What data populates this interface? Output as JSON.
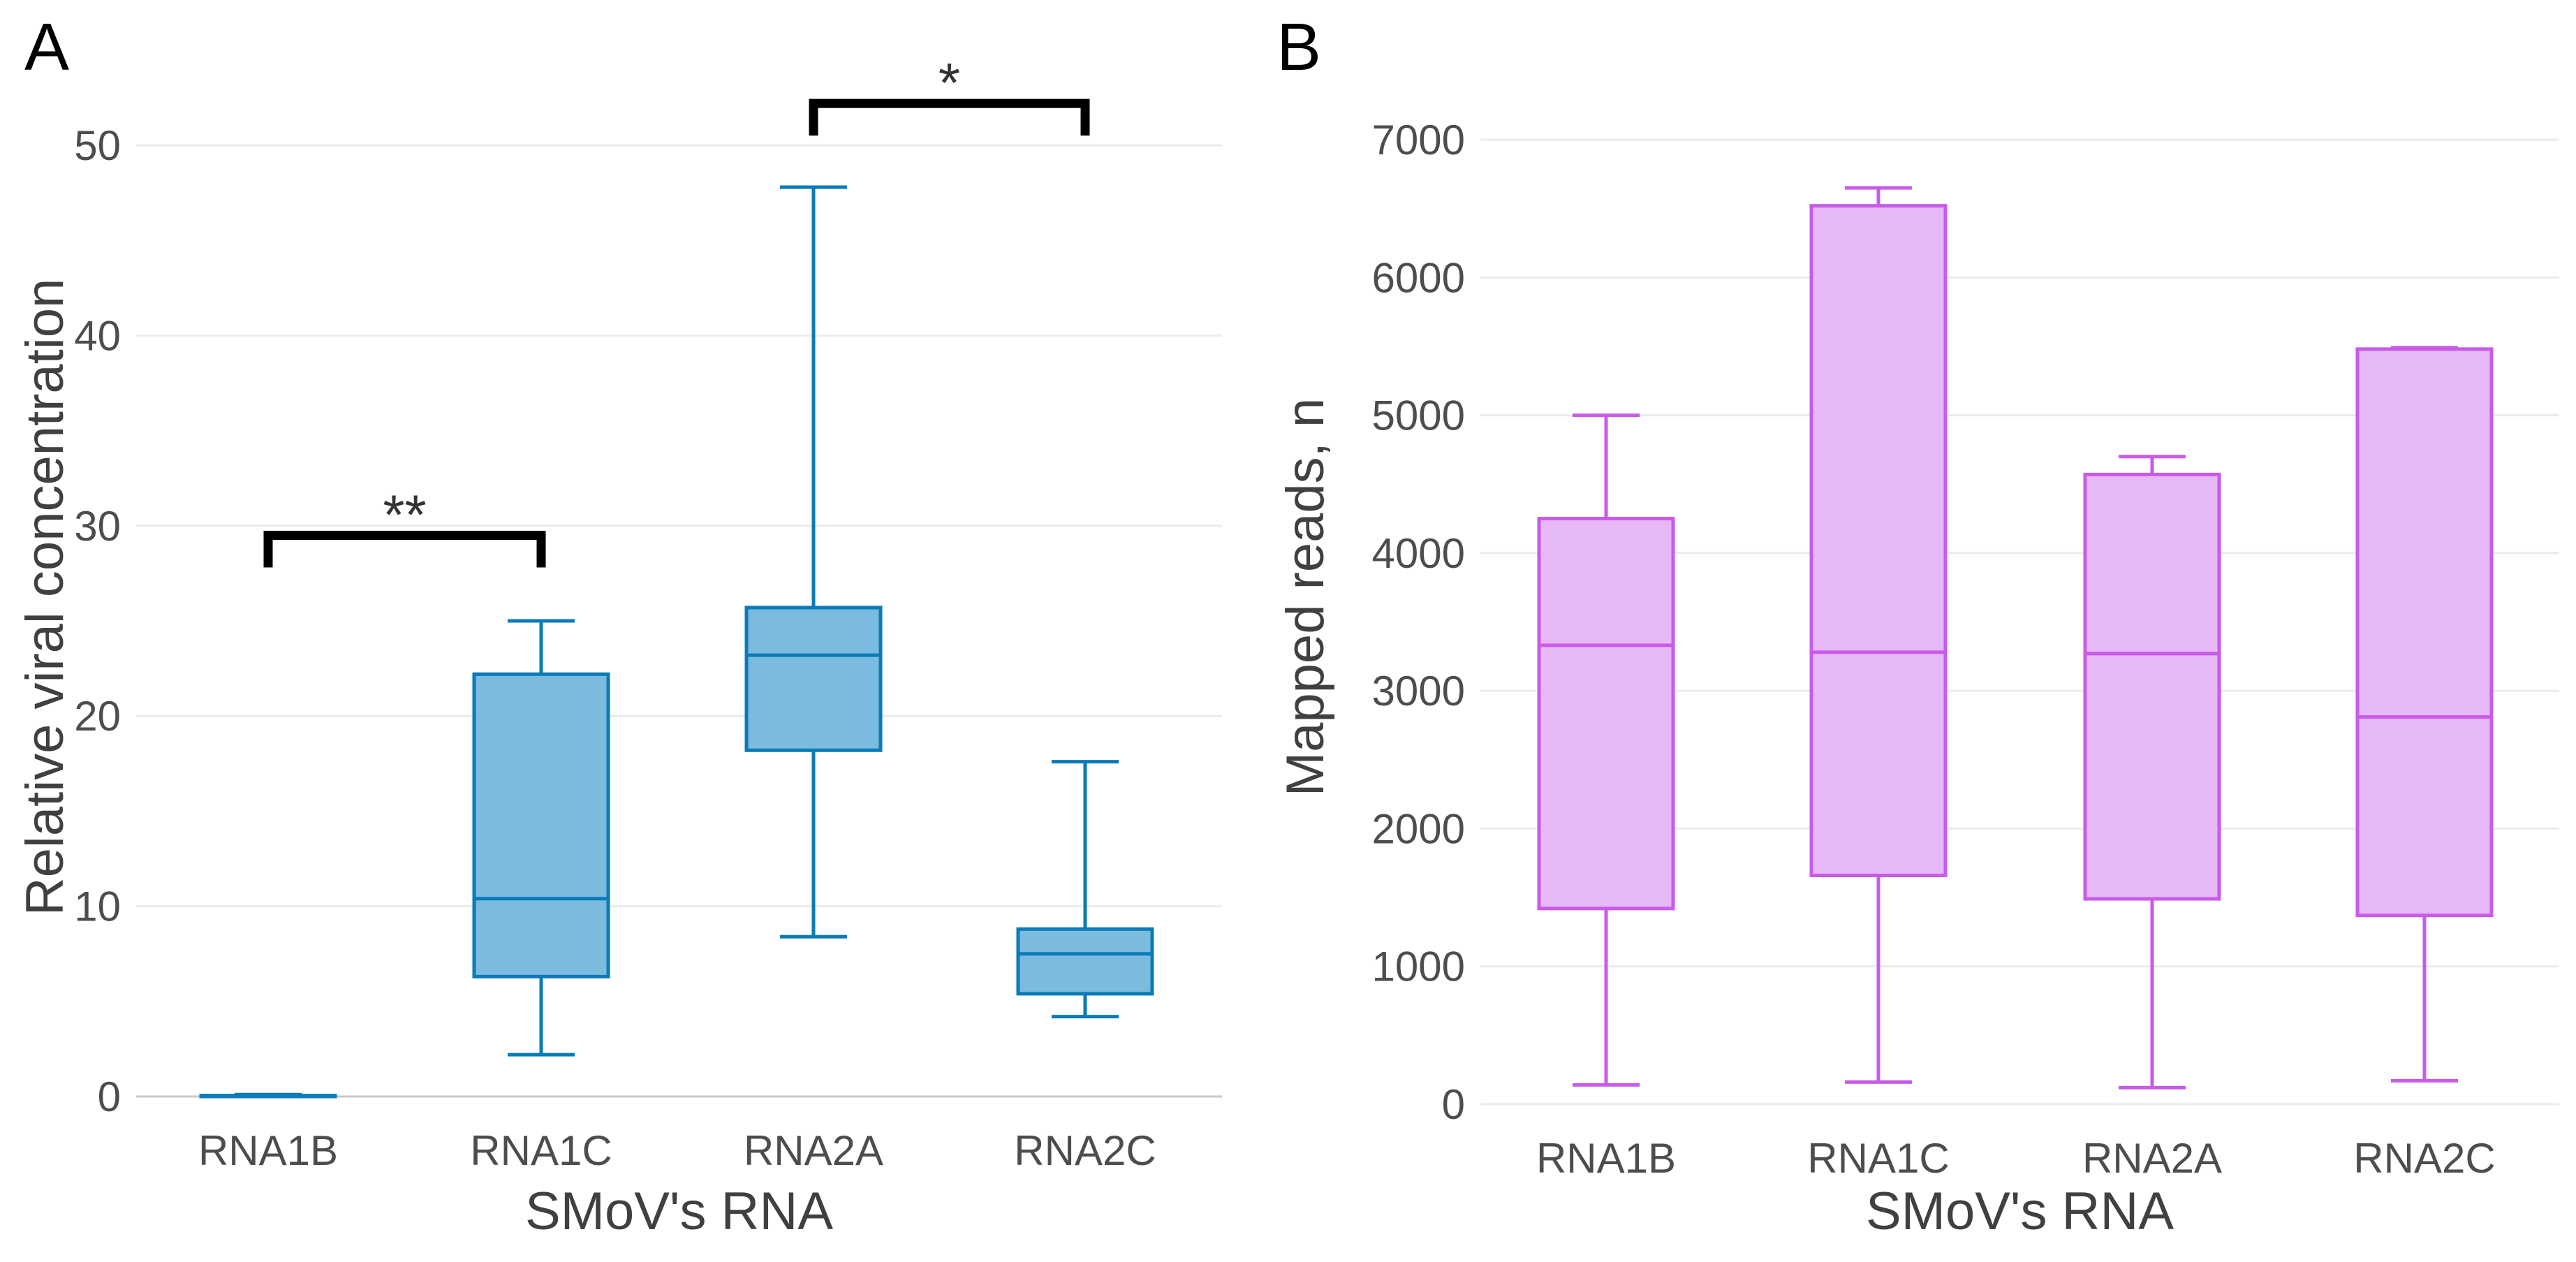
{
  "colors": {
    "panel_a_fill": "#7bbbde",
    "panel_a_stroke": "#0a7bb8",
    "panel_b_fill": "#e6b8f5",
    "panel_b_stroke": "#c95be8",
    "grid": "#ebebeb",
    "bracket": "#000000"
  },
  "chart_data": [
    {
      "type": "box",
      "panel_label": "A",
      "title": "",
      "xlabel": "SMoV's RNA",
      "ylabel": "Relative viral concentration",
      "ylim": [
        0,
        52.5
      ],
      "yticks": [
        0,
        10,
        20,
        30,
        40,
        50
      ],
      "ytick_labels": [
        "0",
        "10",
        "20",
        "30",
        "40",
        "50"
      ],
      "categories": [
        "RNA1B",
        "RNA1C",
        "RNA2A",
        "RNA2C"
      ],
      "boxes": [
        {
          "category": "RNA1B",
          "whisker_low": 0.0,
          "q1": 0.0,
          "median": 0.0,
          "q3": 0.05,
          "whisker_high": 0.1
        },
        {
          "category": "RNA1C",
          "whisker_low": 2.2,
          "q1": 6.3,
          "median": 10.4,
          "q3": 22.2,
          "whisker_high": 25.0
        },
        {
          "category": "RNA2A",
          "whisker_low": 8.4,
          "q1": 18.2,
          "median": 23.2,
          "q3": 25.7,
          "whisker_high": 47.8
        },
        {
          "category": "RNA2C",
          "whisker_low": 4.2,
          "q1": 5.4,
          "median": 7.5,
          "q3": 8.8,
          "whisker_high": 17.6
        }
      ],
      "significance": [
        {
          "from": "RNA1B",
          "to": "RNA1C",
          "label": "**",
          "y": 29.5
        },
        {
          "from": "RNA2A",
          "to": "RNA2C",
          "label": "*",
          "y": 52.2
        }
      ],
      "grid": true
    },
    {
      "type": "box",
      "panel_label": "B",
      "title": "",
      "xlabel": "SMoV's RNA",
      "ylabel": "Mapped reads, n",
      "ylim": [
        0,
        7000
      ],
      "yticks": [
        0,
        1000,
        2000,
        3000,
        4000,
        5000,
        6000,
        7000
      ],
      "ytick_labels": [
        "0",
        "1000",
        "2000",
        "3000",
        "4000",
        "5000",
        "6000",
        "7000"
      ],
      "categories": [
        "RNA1B",
        "RNA1C",
        "RNA2A",
        "RNA2C"
      ],
      "boxes": [
        {
          "category": "RNA1B",
          "whisker_low": 140,
          "q1": 1420,
          "median": 3330,
          "q3": 4250,
          "whisker_high": 5000
        },
        {
          "category": "RNA1C",
          "whisker_low": 160,
          "q1": 1660,
          "median": 3280,
          "q3": 6520,
          "whisker_high": 6650
        },
        {
          "category": "RNA2A",
          "whisker_low": 120,
          "q1": 1490,
          "median": 3270,
          "q3": 4570,
          "whisker_high": 4700
        },
        {
          "category": "RNA2C",
          "whisker_low": 170,
          "q1": 1370,
          "median": 2810,
          "q3": 5480,
          "whisker_high": 5490
        }
      ],
      "significance": [],
      "grid": true
    }
  ]
}
